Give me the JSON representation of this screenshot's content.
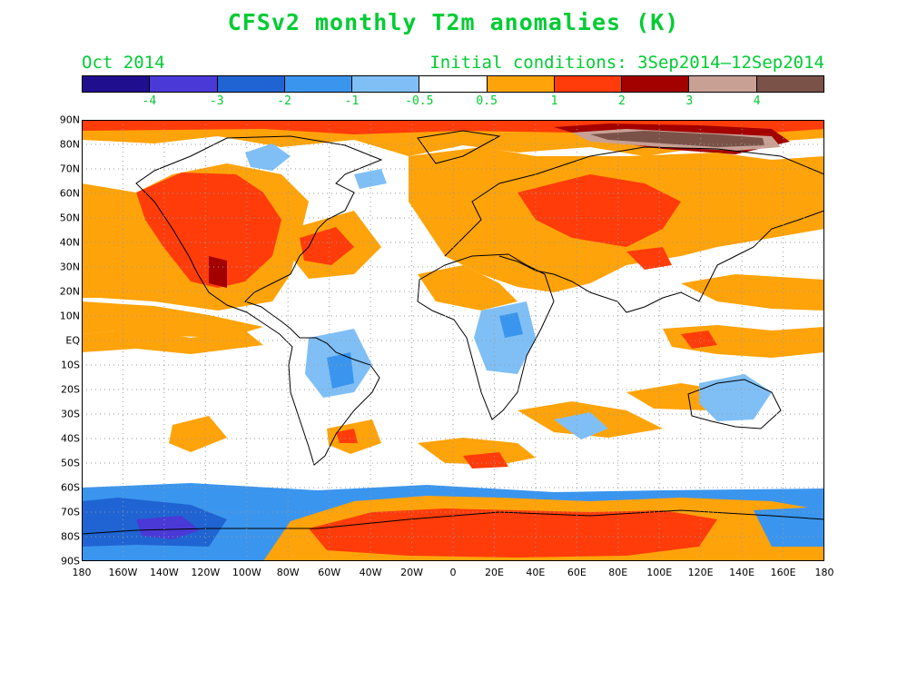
{
  "title": "CFSv2 monthly T2m anomalies (K)",
  "forecast_month": "Oct 2014",
  "initial_conditions": "Initial conditions: 3Sep2014—12Sep2014",
  "colorbar": {
    "colors": [
      "#1f0f8f",
      "#4a39d6",
      "#1f64d2",
      "#3a95ee",
      "#7fbff6",
      "#ffffff",
      "#ffa30a",
      "#ff3c0a",
      "#a30000",
      "#c9a094",
      "#7a5248"
    ],
    "labels": [
      "-4",
      "-3",
      "-2",
      "-1",
      "-0.5",
      "0.5",
      "1",
      "2",
      "3",
      "4"
    ]
  },
  "lat_labels": [
    "90N",
    "80N",
    "70N",
    "60N",
    "50N",
    "40N",
    "30N",
    "20N",
    "10N",
    "EQ",
    "10S",
    "20S",
    "30S",
    "40S",
    "50S",
    "60S",
    "70S",
    "80S",
    "90S"
  ],
  "lon_labels": [
    "180",
    "160W",
    "140W",
    "120W",
    "100W",
    "80W",
    "60W",
    "40W",
    "20W",
    "0",
    "20E",
    "40E",
    "60E",
    "80E",
    "100E",
    "120E",
    "140E",
    "160E",
    "180"
  ],
  "map_colors": {
    "ocean": "#ffffff",
    "coast": "#000000",
    "grid": "#9a9a9a"
  }
}
